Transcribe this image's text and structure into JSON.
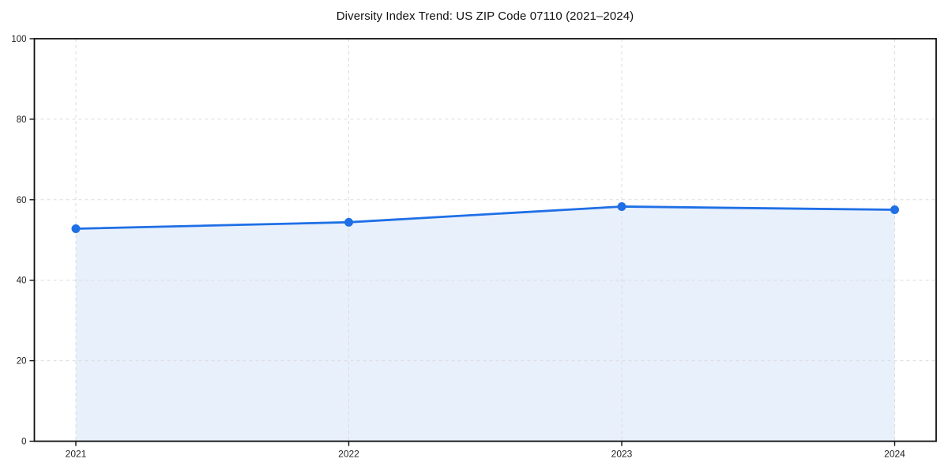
{
  "chart_data": {
    "type": "area",
    "title": "Diversity Index Trend: US ZIP Code 07110 (2021–2024)",
    "x": [
      2021,
      2022,
      2023,
      2024
    ],
    "xticks": [
      "2021",
      "2022",
      "2023",
      "2024"
    ],
    "series": [
      {
        "name": "Diversity Index",
        "values": [
          52.8,
          54.4,
          58.3,
          57.5
        ]
      }
    ],
    "xlabel": "",
    "ylabel": "",
    "ylim": [
      0,
      100
    ],
    "yticks": [
      0,
      20,
      40,
      60,
      80,
      100
    ],
    "grid": "dashed-both-axes",
    "legend": "none",
    "colors": {
      "line": "#1f6fe6",
      "marker": "#1f6fe6",
      "fill": "rgba(31,111,230,0.10)",
      "grid": "#dcdcdc",
      "spine": "#111111",
      "tick": "#111111",
      "tick_label": "#222222",
      "title": "#111111",
      "background": "#ffffff"
    }
  }
}
